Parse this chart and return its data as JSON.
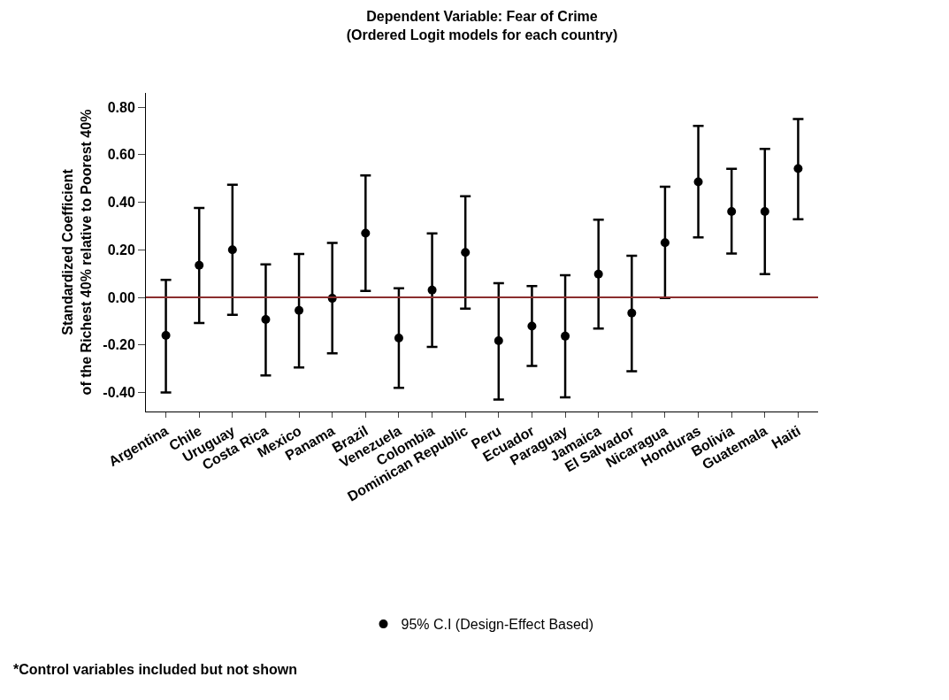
{
  "chart_data": {
    "type": "scatter",
    "title": "Dependent Variable: Fear of Crime",
    "subtitle": "(Ordered Logit models for each country)",
    "ylabel": "Standardized Coefficient\nof the Richest 40% relative to Poorest 40%",
    "categories": [
      "Argentina",
      "Chile",
      "Uruguay",
      "Costa Rica",
      "Mexico",
      "Panama",
      "Brazil",
      "Venezuela",
      "Colombia",
      "Dominican Republic",
      "Peru",
      "Ecuador",
      "Paraguay",
      "Jamaica",
      "El Salvador",
      "Nicaragua",
      "Honduras",
      "Bolivia",
      "Guatemala",
      "Haiti"
    ],
    "series": [
      {
        "name": "95% C.I (Design-Effect Based)",
        "color": "#000000",
        "values": [
          -0.16,
          0.135,
          0.2,
          -0.093,
          -0.055,
          -0.004,
          0.27,
          -0.171,
          0.031,
          0.189,
          -0.182,
          -0.121,
          -0.163,
          0.098,
          -0.066,
          0.23,
          0.486,
          0.361,
          0.361,
          0.542
        ],
        "errors": [
          [
            -0.4,
            0.074
          ],
          [
            -0.108,
            0.376
          ],
          [
            -0.073,
            0.474
          ],
          [
            -0.328,
            0.139
          ],
          [
            -0.295,
            0.183
          ],
          [
            -0.235,
            0.229
          ],
          [
            0.027,
            0.513
          ],
          [
            -0.38,
            0.038
          ],
          [
            -0.208,
            0.269
          ],
          [
            -0.047,
            0.425
          ],
          [
            -0.43,
            0.06
          ],
          [
            -0.288,
            0.048
          ],
          [
            -0.42,
            0.093
          ],
          [
            -0.131,
            0.327
          ],
          [
            -0.311,
            0.175
          ],
          [
            -0.003,
            0.465
          ],
          [
            0.252,
            0.721
          ],
          [
            0.184,
            0.541
          ],
          [
            0.098,
            0.625
          ],
          [
            0.329,
            0.75
          ]
        ]
      }
    ],
    "ylim": [
      -0.48,
      0.86
    ],
    "yticks": [
      {
        "value": -0.4,
        "label": "-0.40"
      },
      {
        "value": -0.2,
        "label": "-0.20"
      },
      {
        "value": 0,
        "label": "0.00"
      },
      {
        "value": 0.2,
        "label": "0.20"
      },
      {
        "value": 0.4,
        "label": "0.40"
      },
      {
        "value": 0.6,
        "label": "0.60"
      },
      {
        "value": 0.8,
        "label": "0.80"
      }
    ],
    "ref_lines": [
      {
        "axis": "y",
        "value": 0,
        "label": null,
        "color": "#8b2e2e"
      }
    ],
    "annotations": [
      "*Control variables included but not shown"
    ],
    "marker": "circle",
    "legend": "bottom"
  }
}
